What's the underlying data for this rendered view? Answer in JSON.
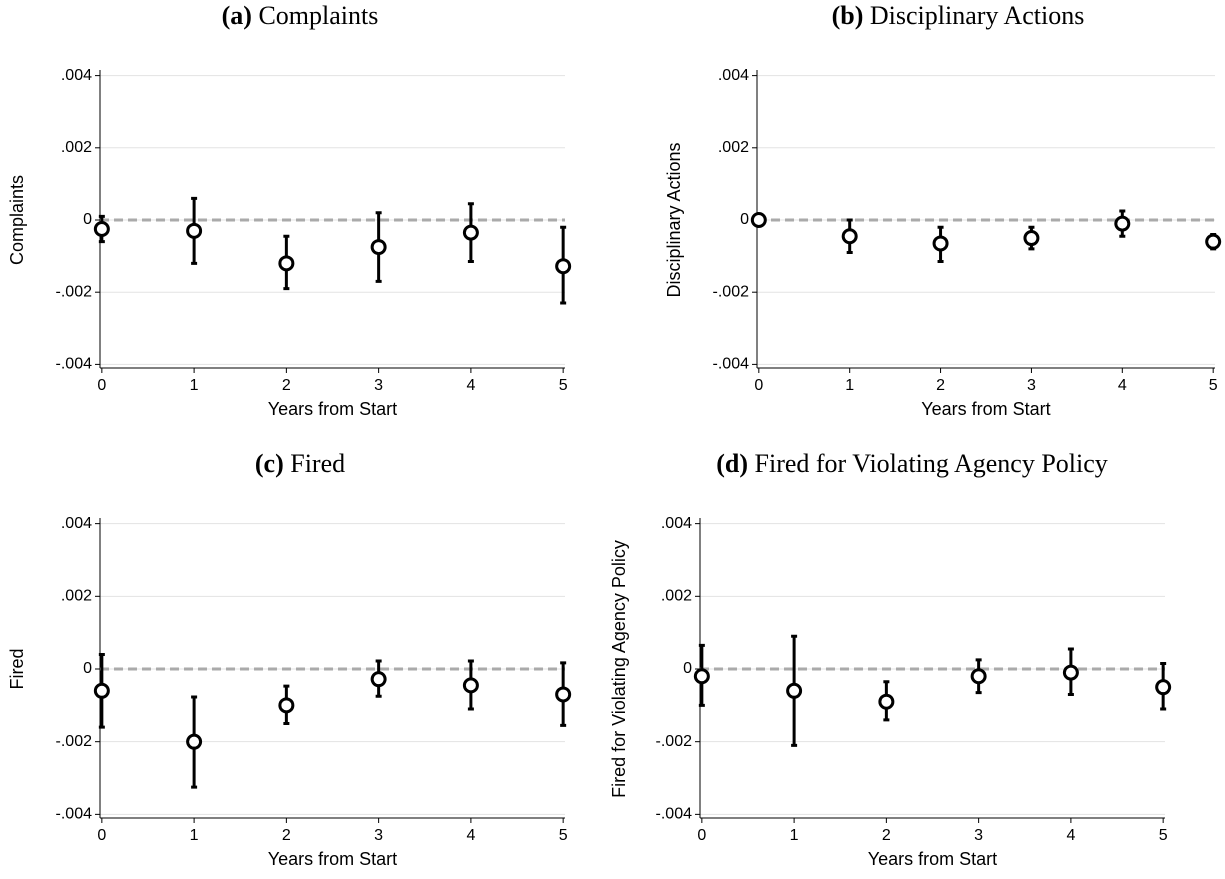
{
  "chart_data": [
    {
      "type": "scatter",
      "label": "(a)",
      "title": "Complaints",
      "x_label": "Years from Start",
      "y_label": "Complaints",
      "x": [
        0,
        1,
        2,
        3,
        4,
        5
      ],
      "values": [
        -0.00025,
        -0.0003,
        -0.0012,
        -0.00075,
        -0.00035,
        -0.00128
      ],
      "lower": [
        -0.0006,
        -0.0012,
        -0.0019,
        -0.0017,
        -0.00115,
        -0.0023
      ],
      "upper": [
        0.0001,
        0.0006,
        -0.00045,
        0.0002,
        0.00045,
        -0.0002
      ],
      "color": "#000000",
      "xlim": [
        -0.02,
        5.02
      ],
      "xticks": [
        0,
        1,
        2,
        3,
        4,
        5
      ],
      "ylim": [
        -0.0041,
        0.0041
      ],
      "yticks": [
        {
          "value": -0.004,
          "label": "-.004"
        },
        {
          "value": -0.002,
          "label": "-.002"
        },
        0,
        {
          "value": 0.002,
          "label": ".002"
        },
        {
          "value": 0.004,
          "label": ".004"
        }
      ],
      "grid": true,
      "hline": 0
    },
    {
      "type": "scatter",
      "label": "(b)",
      "title": "Disciplinary Actions",
      "x_label": "Years from Start",
      "y_label": "Disciplinary Actions",
      "x": [
        0,
        1,
        2,
        3,
        4,
        5
      ],
      "values": [
        0,
        -0.00045,
        -0.00065,
        -0.0005,
        -0.0001,
        -0.0006
      ],
      "lower": [
        -5e-05,
        -0.0009,
        -0.00115,
        -0.0008,
        -0.00045,
        -0.0008
      ],
      "upper": [
        5e-05,
        0,
        -0.0002,
        -0.0002,
        0.00025,
        -0.0004
      ],
      "color": "#000000",
      "xlim": [
        -0.02,
        5.02
      ],
      "xticks": [
        0,
        1,
        2,
        3,
        4,
        5
      ],
      "ylim": [
        -0.0041,
        0.0041
      ],
      "yticks": [
        {
          "value": -0.004,
          "label": "-.004"
        },
        {
          "value": -0.002,
          "label": "-.002"
        },
        0,
        {
          "value": 0.002,
          "label": ".002"
        },
        {
          "value": 0.004,
          "label": ".004"
        }
      ],
      "grid": true,
      "hline": 0
    },
    {
      "type": "scatter",
      "label": "(c)",
      "title": "Fired",
      "x_label": "Years from Start",
      "y_label": "Fired",
      "x": [
        0,
        1,
        2,
        3,
        4,
        5
      ],
      "values": [
        -0.0006,
        -0.002,
        -0.001,
        -0.00028,
        -0.00045,
        -0.0007
      ],
      "lower": [
        -0.0016,
        -0.00325,
        -0.0015,
        -0.00075,
        -0.0011,
        -0.00155
      ],
      "upper": [
        0.0004,
        -0.00077,
        -0.00047,
        0.00022,
        0.00022,
        0.00017
      ],
      "color": "#000000",
      "xlim": [
        -0.02,
        5.02
      ],
      "xticks": [
        0,
        1,
        2,
        3,
        4,
        5
      ],
      "ylim": [
        -0.0041,
        0.0041
      ],
      "yticks": [
        {
          "value": -0.004,
          "label": "-.004"
        },
        {
          "value": -0.002,
          "label": "-.002"
        },
        0,
        {
          "value": 0.002,
          "label": ".002"
        },
        {
          "value": 0.004,
          "label": ".004"
        }
      ],
      "grid": true,
      "hline": 0
    },
    {
      "type": "scatter",
      "label": "(d)",
      "title": "Fired for Violating Agency Policy",
      "x_label": "Years from Start",
      "y_label": "Fired for Violating Agency Policy",
      "x": [
        0,
        1,
        2,
        3,
        4,
        5
      ],
      "values": [
        -0.0002,
        -0.0006,
        -0.0009,
        -0.0002,
        -0.0001,
        -0.0005
      ],
      "lower": [
        -0.001,
        -0.0021,
        -0.0014,
        -0.00065,
        -0.0007,
        -0.0011
      ],
      "upper": [
        0.00065,
        0.0009,
        -0.00035,
        0.00025,
        0.00055,
        0.00015
      ],
      "color": "#000000",
      "xlim": [
        -0.02,
        5.02
      ],
      "xticks": [
        0,
        1,
        2,
        3,
        4,
        5
      ],
      "ylim": [
        -0.0041,
        0.0041
      ],
      "yticks": [
        {
          "value": -0.004,
          "label": "-.004"
        },
        {
          "value": -0.002,
          "label": "-.002"
        },
        0,
        {
          "value": 0.002,
          "label": ".002"
        },
        {
          "value": 0.004,
          "label": ".004"
        }
      ],
      "grid": true,
      "hline": 0
    }
  ]
}
